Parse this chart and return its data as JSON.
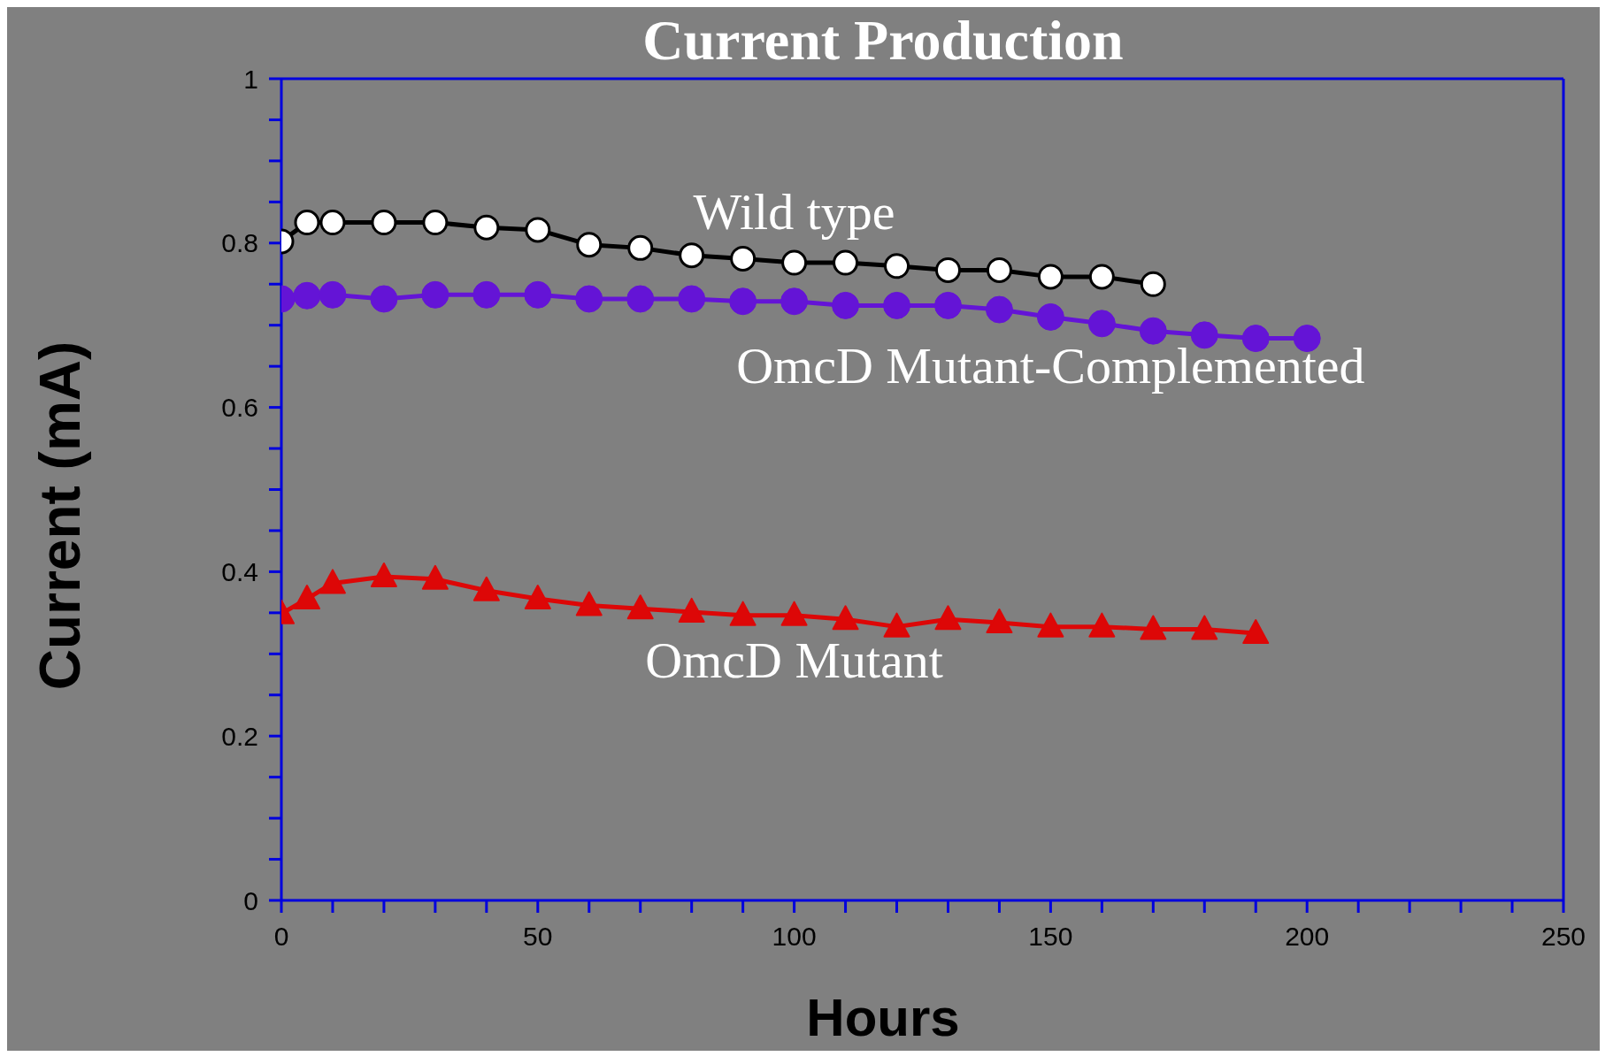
{
  "chart_data": {
    "type": "line",
    "title": "Current Production",
    "xlabel": "Hours",
    "ylabel": "Current (mA)",
    "xlim": [
      0,
      250
    ],
    "ylim": [
      0,
      1
    ],
    "xticks": [
      0,
      {
        "value": 10,
        "label": null
      },
      {
        "value": 20,
        "label": null
      },
      {
        "value": 30,
        "label": null
      },
      {
        "value": 40,
        "label": null
      },
      50,
      {
        "value": 60,
        "label": null
      },
      {
        "value": 70,
        "label": null
      },
      {
        "value": 80,
        "label": null
      },
      {
        "value": 90,
        "label": null
      },
      100,
      {
        "value": 110,
        "label": null
      },
      {
        "value": 120,
        "label": null
      },
      {
        "value": 130,
        "label": null
      },
      {
        "value": 140,
        "label": null
      },
      150,
      {
        "value": 160,
        "label": null
      },
      {
        "value": 170,
        "label": null
      },
      {
        "value": 180,
        "label": null
      },
      {
        "value": 190,
        "label": null
      },
      200,
      {
        "value": 210,
        "label": null
      },
      {
        "value": 220,
        "label": null
      },
      {
        "value": 230,
        "label": null
      },
      {
        "value": 240,
        "label": null
      },
      250
    ],
    "yticks": [
      0,
      {
        "value": 0.05,
        "label": null
      },
      {
        "value": 0.1,
        "label": null
      },
      {
        "value": 0.15,
        "label": null
      },
      0.2,
      {
        "value": 0.25,
        "label": null
      },
      {
        "value": 0.3,
        "label": null
      },
      {
        "value": 0.35,
        "label": null
      },
      0.4,
      {
        "value": 0.45,
        "label": null
      },
      {
        "value": 0.5,
        "label": null
      },
      {
        "value": 0.55,
        "label": null
      },
      0.6,
      {
        "value": 0.65,
        "label": null
      },
      {
        "value": 0.7,
        "label": null
      },
      {
        "value": 0.75,
        "label": null
      },
      0.8,
      {
        "value": 0.85,
        "label": null
      },
      {
        "value": 0.9,
        "label": null
      },
      {
        "value": 0.95,
        "label": null
      },
      1
    ],
    "legend": false,
    "line_style": "solid",
    "series": [
      {
        "name": "Wild type",
        "color": "#000000",
        "marker": "circle",
        "x": [
          0,
          5,
          10,
          20,
          30,
          40,
          50,
          60,
          70,
          80,
          90,
          100,
          110,
          120,
          130,
          140,
          150,
          160,
          170
        ],
        "values": [
          0.802,
          0.825,
          0.825,
          0.825,
          0.825,
          0.819,
          0.816,
          0.798,
          0.794,
          0.785,
          0.781,
          0.776,
          0.776,
          0.772,
          0.767,
          0.767,
          0.759,
          0.759,
          0.75
        ]
      },
      {
        "name": "OmcD Mutant-Complemented",
        "color": "#6414d6",
        "marker": "circle",
        "x": [
          0,
          5,
          10,
          20,
          30,
          40,
          50,
          60,
          70,
          80,
          90,
          100,
          110,
          120,
          130,
          140,
          150,
          160,
          170,
          180,
          190,
          200
        ],
        "values": [
          0.732,
          0.736,
          0.737,
          0.732,
          0.737,
          0.737,
          0.737,
          0.732,
          0.732,
          0.732,
          0.729,
          0.729,
          0.724,
          0.724,
          0.724,
          0.719,
          0.71,
          0.702,
          0.693,
          0.688,
          0.684,
          0.684
        ]
      },
      {
        "name": "OmcD Mutant",
        "color": "#dd0707",
        "marker": "triangle",
        "x": [
          0,
          5,
          10,
          20,
          30,
          40,
          50,
          60,
          70,
          80,
          90,
          100,
          110,
          120,
          130,
          140,
          150,
          160,
          170,
          180,
          190
        ],
        "values": [
          0.349,
          0.367,
          0.386,
          0.394,
          0.391,
          0.377,
          0.367,
          0.359,
          0.355,
          0.351,
          0.347,
          0.347,
          0.342,
          0.333,
          0.342,
          0.338,
          0.333,
          0.333,
          0.33,
          0.33,
          0.325
        ]
      }
    ]
  }
}
